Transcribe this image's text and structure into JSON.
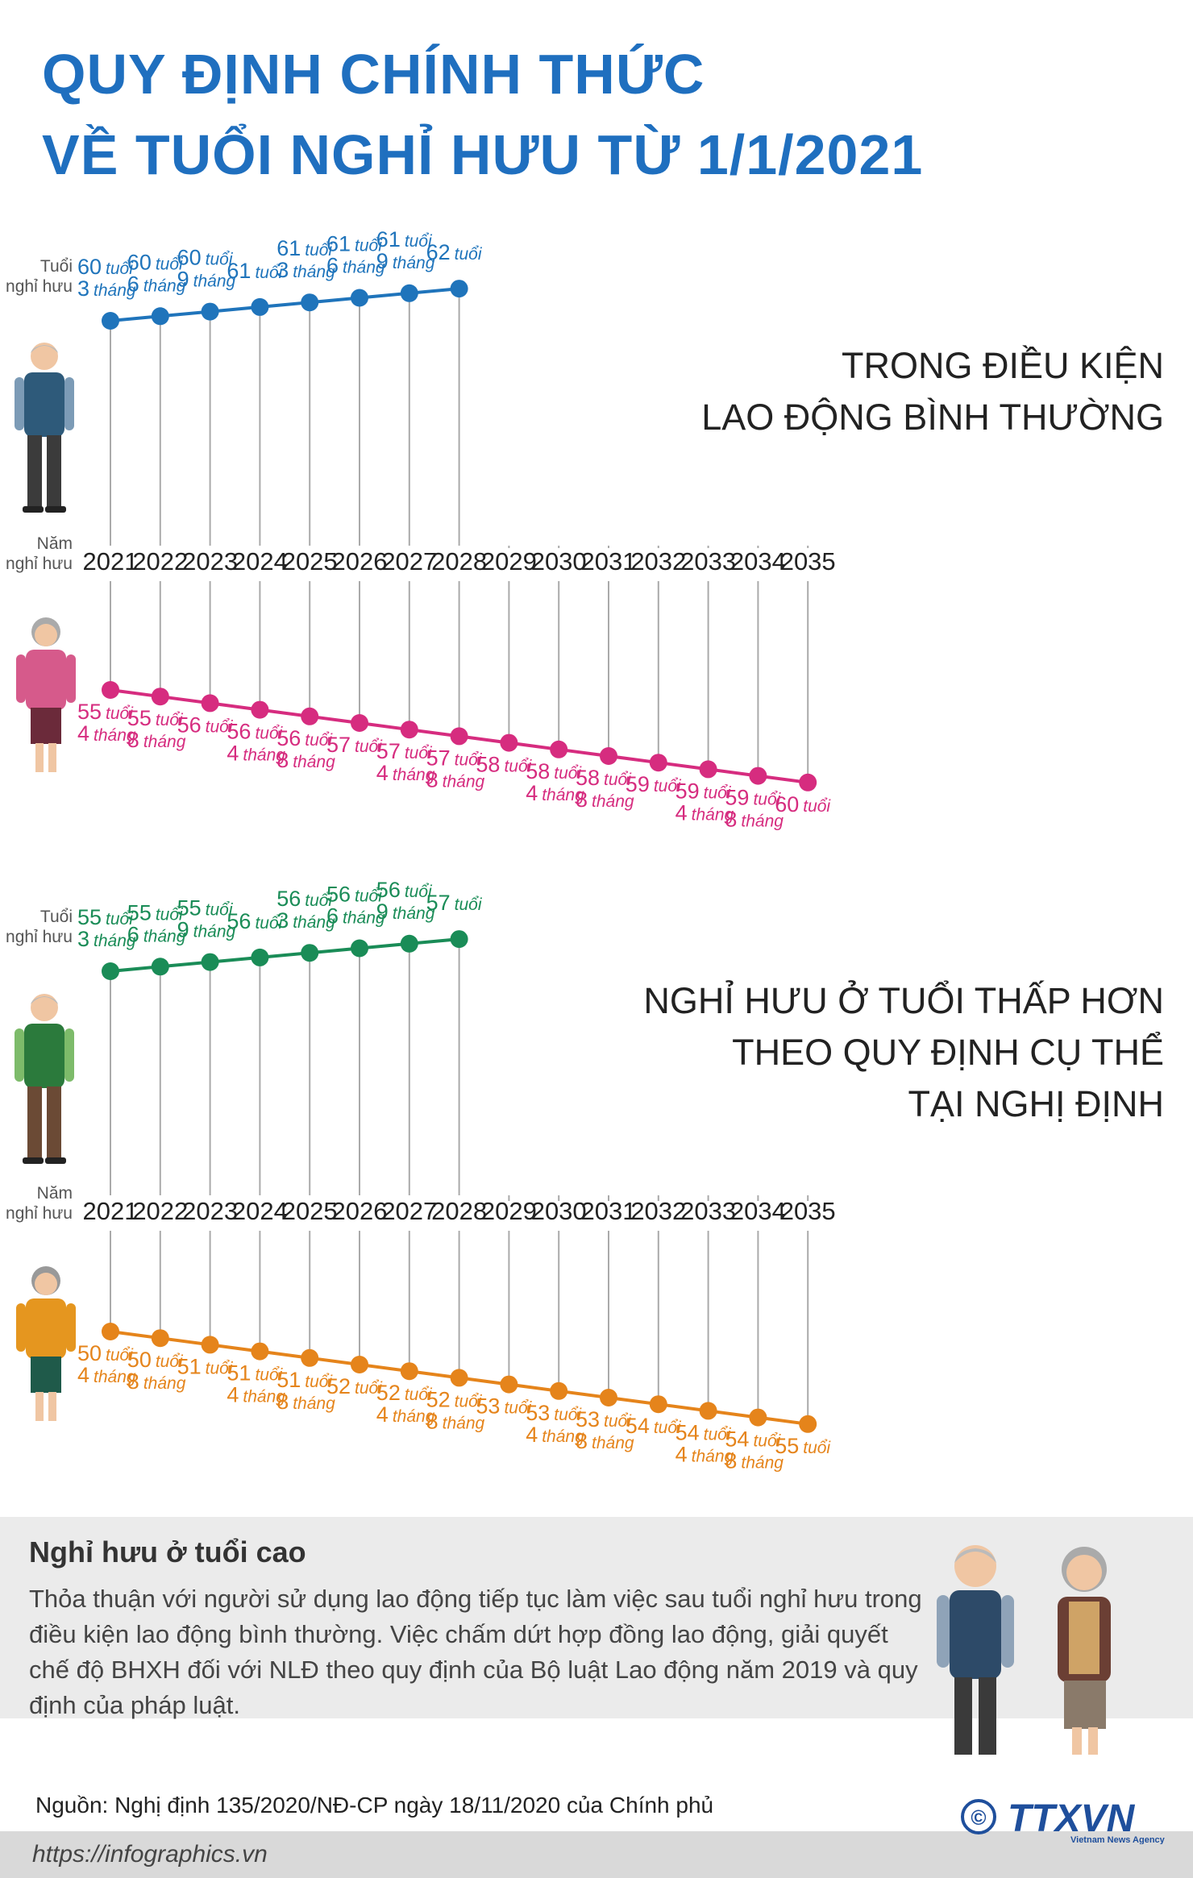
{
  "title": {
    "line1": "QUY ĐỊNH CHÍNH THỨC",
    "line2": "VỀ TUỔI NGHỈ HƯU TỪ 1/1/2021"
  },
  "labels": {
    "age": [
      "Tuổi",
      "nghỉ hưu"
    ],
    "year": [
      "Năm",
      "nghỉ hưu"
    ]
  },
  "years": [
    "2021",
    "2022",
    "2023",
    "2024",
    "2025",
    "2026",
    "2027",
    "2028",
    "2029",
    "2030",
    "2031",
    "2032",
    "2033",
    "2034",
    "2035"
  ],
  "units": {
    "age": "tuổi",
    "month": "tháng"
  },
  "sections": [
    {
      "heading": [
        "TRONG ĐIỀU KIỆN",
        "LAO ĐỘNG BÌNH THƯỜNG"
      ],
      "male": {
        "color": "#1f74bb",
        "ages": [
          [
            60,
            3
          ],
          [
            60,
            6
          ],
          [
            60,
            9
          ],
          [
            61,
            0
          ],
          [
            61,
            3
          ],
          [
            61,
            6
          ],
          [
            61,
            9
          ],
          [
            62,
            0
          ]
        ]
      },
      "female": {
        "color": "#d62c7f",
        "ages": [
          [
            55,
            4
          ],
          [
            55,
            8
          ],
          [
            56,
            0
          ],
          [
            56,
            4
          ],
          [
            56,
            8
          ],
          [
            57,
            0
          ],
          [
            57,
            4
          ],
          [
            57,
            8
          ],
          [
            58,
            0
          ],
          [
            58,
            4
          ],
          [
            58,
            8
          ],
          [
            59,
            0
          ],
          [
            59,
            4
          ],
          [
            59,
            8
          ],
          [
            60,
            0
          ]
        ]
      }
    },
    {
      "heading": [
        "NGHỈ HƯU Ở TUỔI THẤP HƠN",
        "THEO QUY ĐỊNH CỤ THỂ",
        "TẠI NGHỊ ĐỊNH"
      ],
      "male": {
        "color": "#1a8c57",
        "ages": [
          [
            55,
            3
          ],
          [
            55,
            6
          ],
          [
            55,
            9
          ],
          [
            56,
            0
          ],
          [
            56,
            3
          ],
          [
            56,
            6
          ],
          [
            56,
            9
          ],
          [
            57,
            0
          ]
        ]
      },
      "female": {
        "color": "#e5841b",
        "ages": [
          [
            50,
            4
          ],
          [
            50,
            8
          ],
          [
            51,
            0
          ],
          [
            51,
            4
          ],
          [
            51,
            8
          ],
          [
            52,
            0
          ],
          [
            52,
            4
          ],
          [
            52,
            8
          ],
          [
            53,
            0
          ],
          [
            53,
            4
          ],
          [
            53,
            8
          ],
          [
            54,
            0
          ],
          [
            54,
            4
          ],
          [
            54,
            8
          ],
          [
            55,
            0
          ]
        ]
      }
    }
  ],
  "panel": {
    "title": "Nghỉ hưu ở tuổi cao",
    "text": "Thỏa thuận với người sử dụng lao động tiếp tục làm việc sau tuổi nghỉ hưu trong điều kiện lao động bình thường. Việc chấm dứt hợp đồng lao động, giải quyết chế độ BHXH đối với NLĐ theo quy định của Bộ luật Lao động năm 2019 và quy định của pháp luật."
  },
  "source": "Nguồn: Nghị định 135/2020/NĐ-CP ngày 18/11/2020 của Chính phủ",
  "website": "https://infographics.vn",
  "logo": {
    "copyright": "©",
    "text": "TTXVN",
    "subtitle": "Vietnam News Agency"
  }
}
